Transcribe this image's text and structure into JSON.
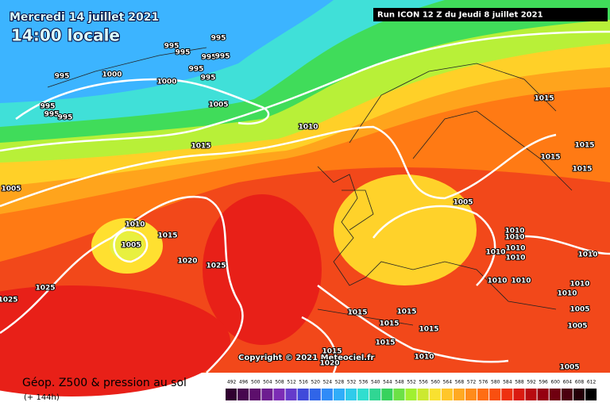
{
  "header": {
    "date": "Mercredi 14 juillet 2021",
    "time": "14:00 locale",
    "run": "Run ICON 12 Z du Jeudi 8 juillet 2021"
  },
  "footer": {
    "title": "Géop. Z500 & pression au sol",
    "lead": "(+ 144h)",
    "copyright": "Copyright © 2021 Meteociel.fr"
  },
  "legend": {
    "levels": [
      492,
      496,
      500,
      504,
      508,
      512,
      516,
      520,
      524,
      528,
      532,
      536,
      540,
      544,
      548,
      552,
      556,
      560,
      564,
      568,
      572,
      576,
      580,
      584,
      588,
      592,
      596,
      600,
      604,
      608,
      612
    ]
  },
  "isobars": [
    "995",
    "995",
    "995",
    "995",
    "995",
    "995",
    "995",
    "995",
    "1000",
    "1000",
    "995",
    "995",
    "995",
    "1005",
    "1010",
    "1015",
    "1005",
    "1010",
    "1015",
    "1005",
    "1020",
    "1025",
    "1025",
    "1025",
    "1005",
    "1015",
    "1015",
    "1015",
    "1015",
    "1010",
    "1010",
    "1010",
    "1010",
    "1010",
    "1010",
    "1010",
    "1010",
    "1010",
    "1010",
    "1005",
    "1005",
    "1015",
    "1015",
    "1015",
    "1015",
    "1015",
    "1010",
    "1005",
    "1015",
    "1020"
  ]
}
